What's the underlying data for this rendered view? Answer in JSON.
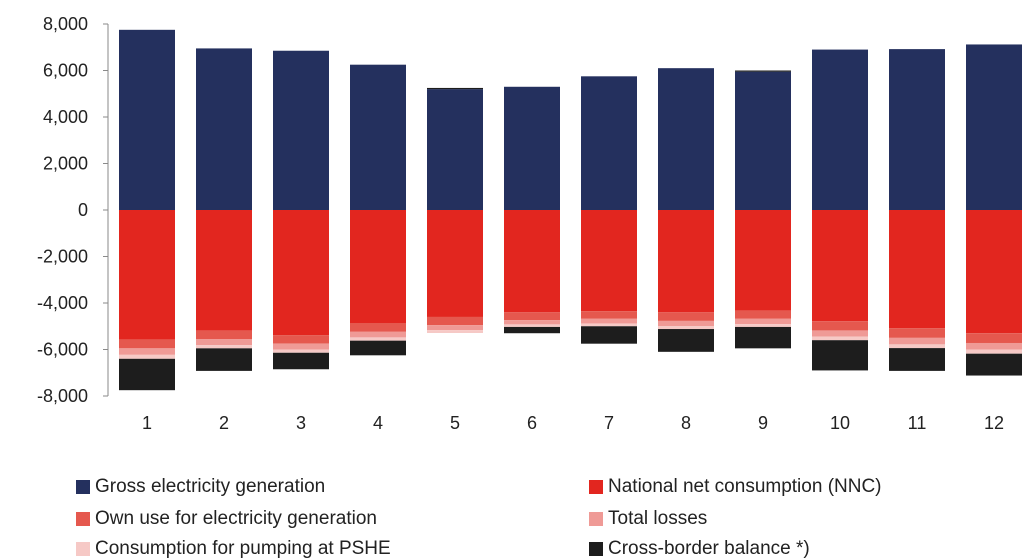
{
  "chart_data": {
    "type": "bar",
    "stacked": true,
    "title": "",
    "xlabel": "",
    "ylabel": "",
    "categories": [
      "1",
      "2",
      "3",
      "4",
      "5",
      "6",
      "7",
      "8",
      "9",
      "10",
      "11",
      "12"
    ],
    "ylim": [
      -8000,
      8000
    ],
    "yticks": [
      8000,
      6000,
      4000,
      2000,
      0,
      -2000,
      -4000,
      -6000,
      -8000
    ],
    "ytick_labels": [
      "8,000",
      "6,000",
      "4,000",
      "2,000",
      "0",
      "-2,000",
      "-4,000",
      "-6,000",
      "-8,000"
    ],
    "grid": false,
    "legend_position": "bottom",
    "series": [
      {
        "name": "Gross electricity generation",
        "color": "#24305e",
        "values": [
          7750,
          6950,
          6850,
          6250,
          5200,
          5300,
          5750,
          6100,
          5950,
          6900,
          6920,
          7120
        ]
      },
      {
        "name": "Cross-border balance *)",
        "color": "#1d1d1d",
        "values": [
          0,
          0,
          0,
          0,
          50,
          0,
          0,
          0,
          50,
          0,
          0,
          0
        ]
      },
      {
        "name": "National net consumption (NNC)",
        "color": "#e2261f",
        "values": [
          -5580,
          -5180,
          -5380,
          -4860,
          -4600,
          -4400,
          -4350,
          -4400,
          -4320,
          -4780,
          -5080,
          -5300
        ]
      },
      {
        "name": "Own use for electricity generation",
        "color": "#e5584e",
        "values": [
          -370,
          -380,
          -370,
          -380,
          -350,
          -340,
          -330,
          -370,
          -360,
          -400,
          -420,
          -420
        ]
      },
      {
        "name": "Total losses",
        "color": "#ef9a96",
        "values": [
          -280,
          -250,
          -260,
          -240,
          -220,
          -180,
          -200,
          -220,
          -230,
          -260,
          -280,
          -290
        ]
      },
      {
        "name": "Consumption for pumping at PSHE",
        "color": "#f6c9c6",
        "values": [
          -170,
          -140,
          -130,
          -140,
          -120,
          -110,
          -120,
          -130,
          -120,
          -160,
          -160,
          -170
        ]
      },
      {
        "name": "Cross-border balance *)",
        "color": "#1d1d1d",
        "values": [
          -1350,
          -970,
          -710,
          -630,
          0,
          -270,
          -750,
          -980,
          -920,
          -1300,
          -980,
          -940
        ]
      }
    ]
  },
  "legend": {
    "items": [
      {
        "label": "Gross electricity generation",
        "color": "#24305e"
      },
      {
        "label": "National net consumption (NNC)",
        "color": "#e2261f"
      },
      {
        "label": "Own use for electricity generation",
        "color": "#e5584e"
      },
      {
        "label": "Total losses",
        "color": "#ef9a96"
      },
      {
        "label": "Consumption for pumping at PSHE",
        "color": "#f6c9c6"
      },
      {
        "label": "Cross-border balance *)",
        "color": "#1d1d1d"
      }
    ]
  }
}
